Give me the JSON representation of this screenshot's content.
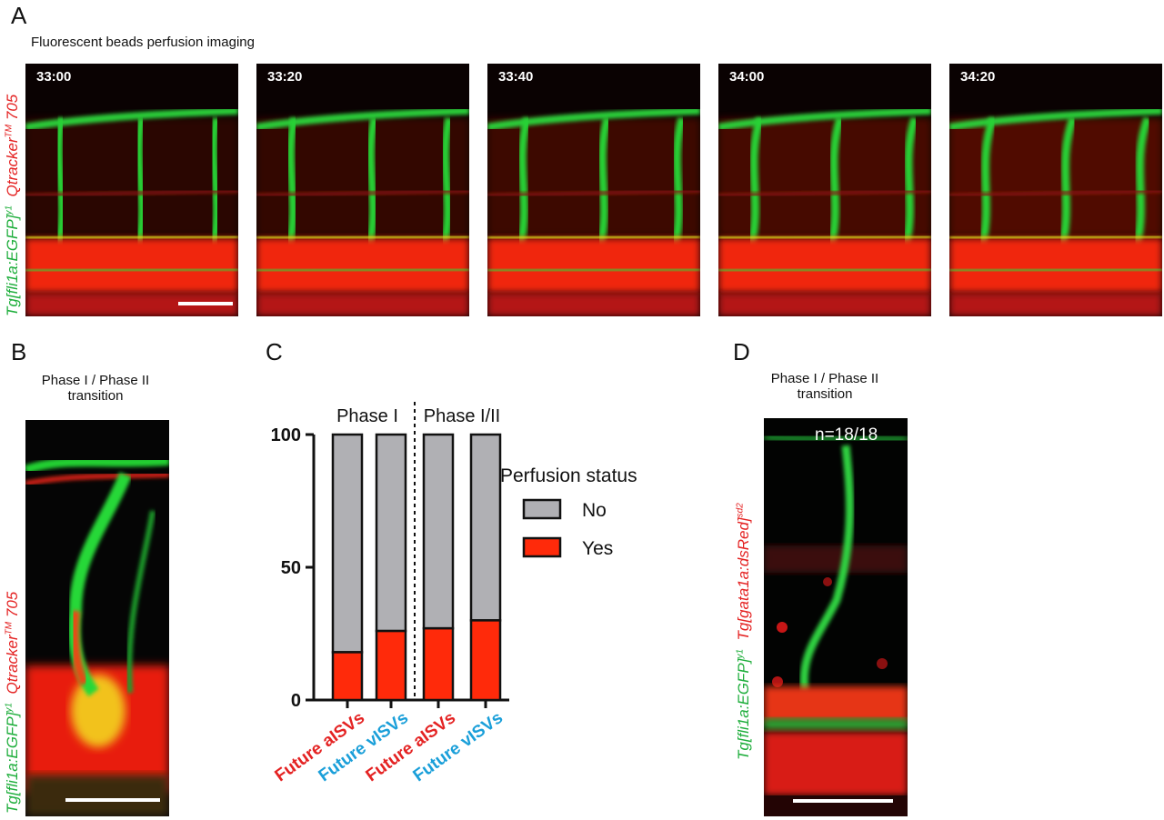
{
  "panelA": {
    "letter": "A",
    "title": "Fluorescent beads perfusion imaging",
    "timestamps": [
      "33:00",
      "33:20",
      "33:40",
      "34:00",
      "34:20"
    ],
    "ylabel_green": "Tg[fli1a:EGFP]",
    "ylabel_green_sup": "y1",
    "ylabel_red": "Qtracker",
    "ylabel_red_sup": "TM",
    "ylabel_red_tail": " 705"
  },
  "panelB": {
    "letter": "B",
    "title_line1": "Phase I / Phase II",
    "title_line2": "transition",
    "ylabel_green": "Tg[fli1a:EGFP]",
    "ylabel_green_sup": "y1",
    "ylabel_red": "Qtracker",
    "ylabel_red_sup": "TM",
    "ylabel_red_tail": " 705"
  },
  "panelC": {
    "letter": "C"
  },
  "panelD": {
    "letter": "D",
    "title_line1": "Phase I / Phase II",
    "title_line2": "transition",
    "count": "n=18/18",
    "ylabel_green": "Tg[fli1a:EGFP]",
    "ylabel_green_sup": "y1",
    "ylabel_red": "Tg[gata1a:dsRed]",
    "ylabel_red_sup": "sd2"
  },
  "chart_data": {
    "type": "bar",
    "stacked": true,
    "categories": [
      "Future aISVs",
      "Future vISVs",
      "Future aISVs",
      "Future vISVs"
    ],
    "category_colors": [
      "#e42222",
      "#1a9fd9",
      "#e42222",
      "#1a9fd9"
    ],
    "series": [
      {
        "name": "Yes",
        "values": [
          18,
          26,
          27,
          30
        ],
        "color": "#ff2a0a"
      },
      {
        "name": "No",
        "values": [
          82,
          74,
          73,
          70
        ],
        "color": "#b0b0b4"
      }
    ],
    "ylim": [
      0,
      100
    ],
    "yticks": [
      "0",
      "50",
      "100"
    ],
    "groups": [
      {
        "label": "Phase I",
        "categories": [
          0,
          1
        ]
      },
      {
        "label": "Phase I/II",
        "categories": [
          2,
          3
        ]
      }
    ],
    "legend_title": "Perfusion status",
    "legend_order": [
      "No",
      "Yes"
    ],
    "legend_position": "right"
  }
}
